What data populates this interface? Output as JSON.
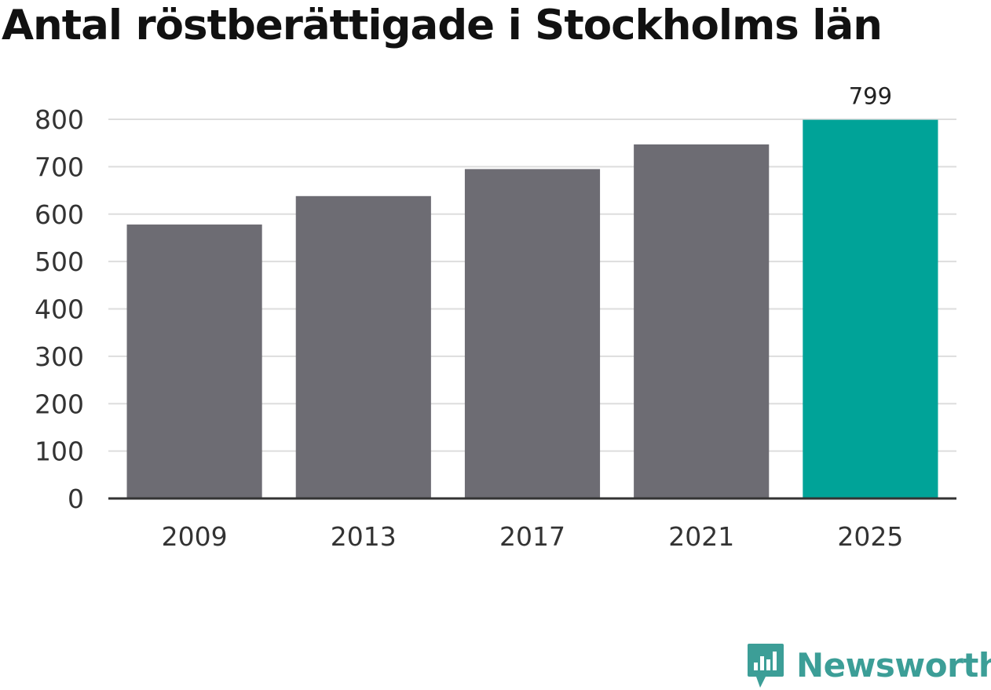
{
  "chart_data": {
    "type": "bar",
    "title": "Antal röstberättigade i Stockholms län",
    "categories": [
      "2009",
      "2013",
      "2017",
      "2021",
      "2025"
    ],
    "values": [
      578,
      638,
      695,
      747,
      799
    ],
    "highlight_index": 4,
    "data_labels": [
      "",
      "",
      "",
      "",
      "799"
    ],
    "ylim": [
      0,
      800
    ],
    "yticks": [
      "0",
      "100",
      "200",
      "300",
      "400",
      "500",
      "600",
      "700",
      "800"
    ],
    "xlabel": "",
    "ylabel": "",
    "grid": true,
    "legend": "none"
  },
  "colors": {
    "bar": "#6d6c73",
    "highlight": "#00a398",
    "grid": "#dddddd",
    "axis": "#333333",
    "brand": "#3c9e97"
  },
  "brand": {
    "name": "Newsworthy",
    "icon": "newsworthy-logo-icon"
  }
}
